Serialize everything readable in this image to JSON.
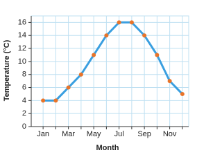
{
  "chart_data": {
    "type": "line",
    "y_label": "Temperature (°C)",
    "x_label": "Month",
    "categories": [
      "Jan",
      null,
      "Mar",
      null,
      "May",
      null,
      "Jul",
      null,
      "Sep",
      null,
      "Nov",
      null
    ],
    "series": [
      {
        "color": "#3a9fe0",
        "marker_color": "#e8742a",
        "values": [
          4,
          4,
          6,
          8,
          11,
          14,
          16,
          16,
          14,
          11,
          7,
          5
        ]
      }
    ],
    "ylim": [
      0,
      17
    ],
    "yticks": [
      0,
      2,
      4,
      6,
      8,
      10,
      12,
      14,
      16
    ],
    "grid": true
  }
}
